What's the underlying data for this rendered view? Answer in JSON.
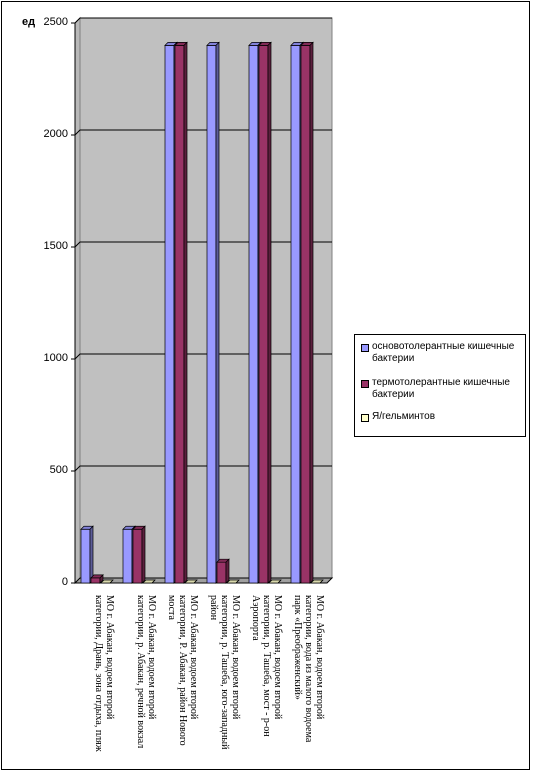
{
  "chart_data": {
    "type": "bar",
    "title": "",
    "xlabel": "",
    "ylabel": "ед",
    "ylim": [
      0,
      2500
    ],
    "yticks": [
      "0",
      "500",
      "1000",
      "1500",
      "2000",
      "2500"
    ],
    "grid": true,
    "legend_position": "right",
    "categories": [
      "МО г. Абакан, водоем второй категории, Дрань, зона отдыха, пляж",
      "МО г. Абакан, водоем второй категории, р. Абакан, речной вокзал",
      "МО г. Абакан, водоем второй категории, Р. Абакан, район Нового моста",
      "МО г. Абакан, водоем второй категории, р. Ташеба, юго-западный район",
      "МО г. Абакан, водоем второй категории, р. Ташеба, мост - р-он Аэропорта",
      "МО г. Абакан, водоем второй категории, вода из малого водоема парк «Преображенский»"
    ],
    "series": [
      {
        "name": "основотолерантные кишечные бактерии",
        "color": "#9999FF",
        "values": [
          240,
          240,
          2400,
          2400,
          2400,
          2400
        ]
      },
      {
        "name": "термотолерантные кишечные бактерии",
        "color": "#993366",
        "values": [
          23,
          240,
          2400,
          93,
          2400,
          2400
        ]
      },
      {
        "name": "Я/гельминтов",
        "color": "#FFFFCC",
        "values": [
          0,
          0,
          0,
          0,
          0,
          0
        ]
      }
    ]
  }
}
